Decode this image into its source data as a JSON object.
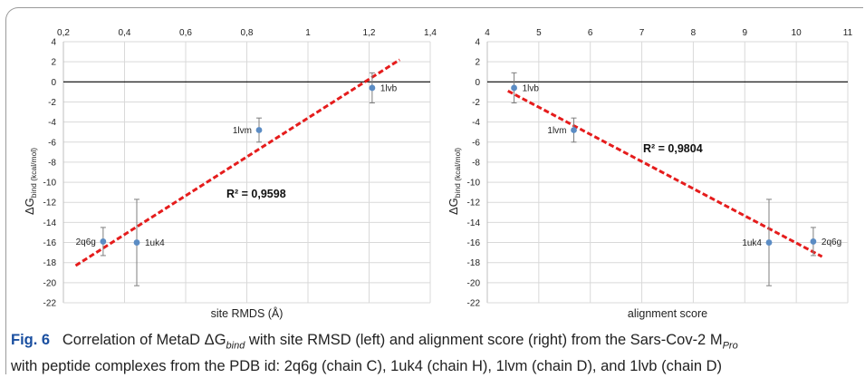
{
  "chart_data": [
    {
      "type": "scatter",
      "xlabel": "site RMDS (Å)",
      "ylabel": "ΔG",
      "ylabel_sub": "bind (kcal/mol)",
      "xlim": [
        0.2,
        1.4
      ],
      "ylim": [
        -22,
        4
      ],
      "x_ticks": [
        "0,2",
        "0,4",
        "0,6",
        "0,8",
        "1",
        "1,2",
        "1,4"
      ],
      "y_ticks": [
        "4",
        "2",
        "0",
        "-2",
        "-4",
        "-6",
        "-8",
        "-10",
        "-12",
        "-14",
        "-16",
        "-18",
        "-20",
        "-22"
      ],
      "grid": true,
      "points": [
        {
          "label": "2q6g",
          "x": 0.33,
          "y": -15.9,
          "err": 1.4
        },
        {
          "label": "1uk4",
          "x": 0.44,
          "y": -16.0,
          "err": 4.3
        },
        {
          "label": "1lvm",
          "x": 0.84,
          "y": -4.8,
          "err": 1.2
        },
        {
          "label": "1lvb",
          "x": 1.21,
          "y": -0.6,
          "err": 1.5
        }
      ],
      "trendline": {
        "x": [
          0.24,
          1.3
        ],
        "y": [
          -18.3,
          2.2
        ]
      },
      "r2": "R² = 0,9598"
    },
    {
      "type": "scatter",
      "xlabel": "alignment score",
      "ylabel": "ΔG",
      "ylabel_sub": "bind (kcal/mol)",
      "xlim": [
        4,
        11
      ],
      "ylim": [
        -22,
        4
      ],
      "x_ticks": [
        "4",
        "5",
        "6",
        "7",
        "8",
        "9",
        "10",
        "11"
      ],
      "y_ticks": [
        "4",
        "2",
        "0",
        "-2",
        "-4",
        "-6",
        "-8",
        "-10",
        "-12",
        "-14",
        "-16",
        "-18",
        "-20",
        "-22"
      ],
      "grid": true,
      "points": [
        {
          "label": "1lvb",
          "x": 4.52,
          "y": -0.6,
          "err": 1.5
        },
        {
          "label": "1lvm",
          "x": 5.68,
          "y": -4.8,
          "err": 1.2
        },
        {
          "label": "1uk4",
          "x": 9.47,
          "y": -16.0,
          "err": 4.3
        },
        {
          "label": "2q6g",
          "x": 10.33,
          "y": -15.9,
          "err": 1.4
        }
      ],
      "trendline": {
        "x": [
          4.4,
          10.5
        ],
        "y": [
          -0.9,
          -17.4
        ]
      },
      "r2": "R² = 0,9804"
    }
  ],
  "caption": {
    "fig_label": "Fig. 6",
    "text_1": "Correlation of MetaD ΔG",
    "text_1_sub": "bind",
    "text_2": " with site RMSD (left) and alignment score (right) from the Sars-Cov-2 M",
    "text_2_sub": "Pro",
    "text_3": "with peptide complexes from the PDB id: 2q6g (chain C), 1uk4 (chain H), 1lvm (chain D), and 1lvb (chain D)"
  },
  "colors": {
    "point": "#5b8cc4",
    "trendline": "#e51c1c",
    "grid": "#d9d9d9",
    "zero_line": "#000000",
    "error_bar": "#7f7f7f",
    "caption_label": "#1a4fa0"
  }
}
